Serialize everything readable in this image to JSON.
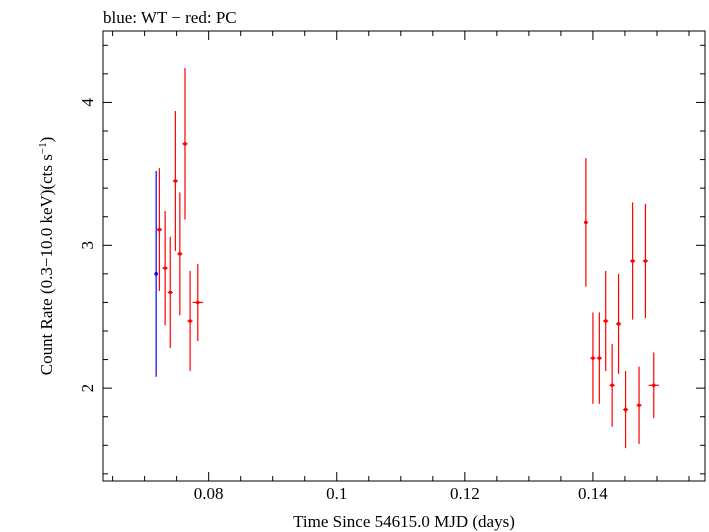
{
  "title": "blue: WT − red: PC",
  "chart_data": {
    "type": "scatter",
    "title": "blue: WT − red: PC",
    "xlabel": "Time Since 54615.0 MJD (days)",
    "ylabel": "Count Rate (0.3−10.0 keV)(cts s−1)",
    "ylabel_parts": {
      "main": "Count Rate (0.3−10.0 keV)(cts s",
      "sup": "−1",
      "close": ")"
    },
    "xlim": [
      0.0635,
      0.1575
    ],
    "ylim": [
      1.35,
      4.5
    ],
    "xticks": [
      {
        "value": 0.08,
        "label": "0.08"
      },
      {
        "value": 0.1,
        "label": "0.1"
      },
      {
        "value": 0.12,
        "label": "0.12"
      },
      {
        "value": 0.14,
        "label": "0.14"
      }
    ],
    "yticks": [
      {
        "value": 2,
        "label": "2"
      },
      {
        "value": 3,
        "label": "3"
      },
      {
        "value": 4,
        "label": "4"
      }
    ],
    "grid": false,
    "series": [
      {
        "color": "#0000ff",
        "points": [
          {
            "x": 0.0718,
            "xerr": 0.0002,
            "y": 2.8,
            "yerr": 0.72
          }
        ]
      },
      {
        "color": "#ff0000",
        "points": [
          {
            "x": 0.0723,
            "xerr": 0.0004,
            "y": 3.11,
            "yerr": 0.43
          },
          {
            "x": 0.0732,
            "xerr": 0.0004,
            "y": 2.84,
            "yerr": 0.4
          },
          {
            "x": 0.074,
            "xerr": 0.0004,
            "y": 2.67,
            "yerr": 0.39
          },
          {
            "x": 0.0748,
            "xerr": 0.0004,
            "y": 3.45,
            "yerr": 0.49
          },
          {
            "x": 0.0755,
            "xerr": 0.0004,
            "y": 2.94,
            "yerr": 0.43
          },
          {
            "x": 0.0763,
            "xerr": 0.0004,
            "y": 3.71,
            "yerr": 0.53
          },
          {
            "x": 0.0771,
            "xerr": 0.0004,
            "y": 2.47,
            "yerr": 0.35
          },
          {
            "x": 0.0783,
            "xerr": 0.0008,
            "y": 2.6,
            "yerr": 0.27
          },
          {
            "x": 0.1389,
            "xerr": 0.0003,
            "y": 3.16,
            "yerr": 0.45
          },
          {
            "x": 0.14,
            "xerr": 0.0004,
            "y": 2.21,
            "yerr": 0.32
          },
          {
            "x": 0.141,
            "xerr": 0.0004,
            "y": 2.21,
            "yerr": 0.32
          },
          {
            "x": 0.142,
            "xerr": 0.0004,
            "y": 2.47,
            "yerr": 0.35
          },
          {
            "x": 0.143,
            "xerr": 0.0004,
            "y": 2.02,
            "yerr": 0.29
          },
          {
            "x": 0.144,
            "xerr": 0.0004,
            "y": 2.45,
            "yerr": 0.35
          },
          {
            "x": 0.1451,
            "xerr": 0.0004,
            "y": 1.85,
            "yerr": 0.27
          },
          {
            "x": 0.1462,
            "xerr": 0.0004,
            "y": 2.89,
            "yerr": 0.41
          },
          {
            "x": 0.1472,
            "xerr": 0.0004,
            "y": 1.88,
            "yerr": 0.27
          },
          {
            "x": 0.1482,
            "xerr": 0.0004,
            "y": 2.89,
            "yerr": 0.4
          },
          {
            "x": 0.1495,
            "xerr": 0.0008,
            "y": 2.02,
            "yerr": 0.23
          }
        ]
      }
    ]
  }
}
